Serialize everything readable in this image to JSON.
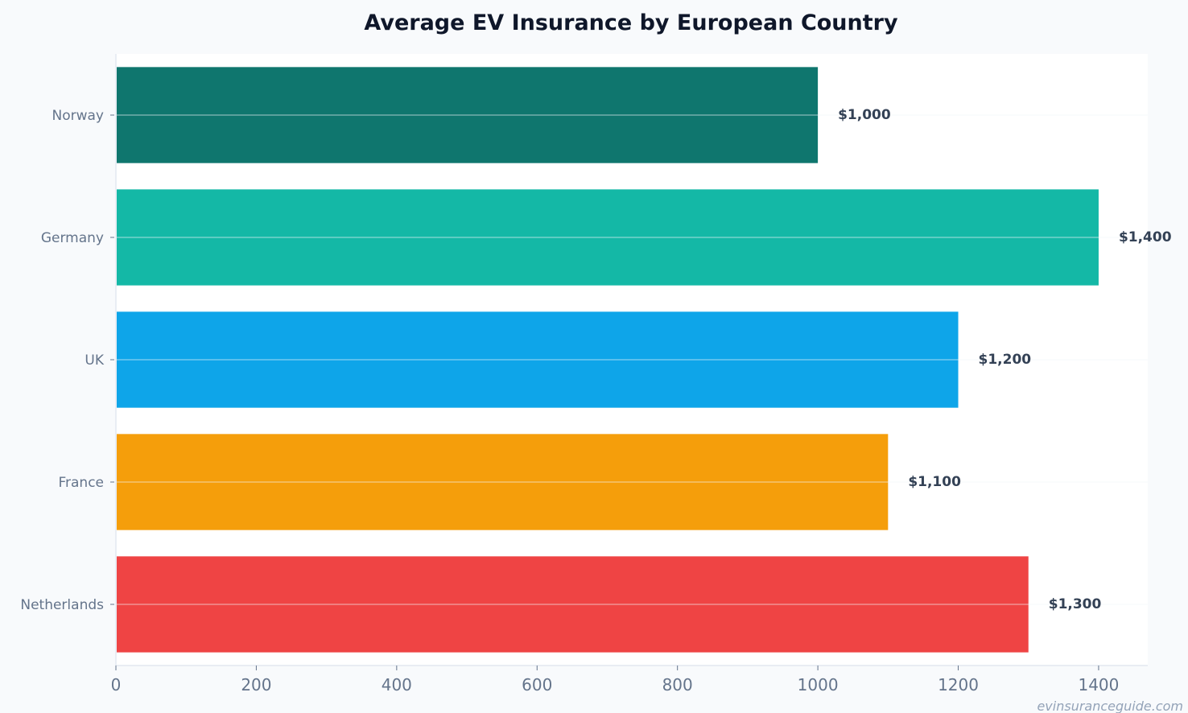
{
  "chart_data": {
    "type": "bar",
    "orientation": "horizontal",
    "title": "Average EV Insurance by European Country",
    "xlabel": "",
    "ylabel": "",
    "categories": [
      "Norway",
      "Germany",
      "UK",
      "France",
      "Netherlands"
    ],
    "values": [
      1000,
      1400,
      1200,
      1100,
      1300
    ],
    "data_labels": [
      "$1,000",
      "$1,400",
      "$1,200",
      "$1,100",
      "$1,300"
    ],
    "colors": [
      "#0f766e",
      "#14b8a6",
      "#0ea5e9",
      "#f59e0b",
      "#ef4444"
    ],
    "xlim": [
      0,
      1470
    ],
    "xticks": [
      0,
      200,
      400,
      600,
      800,
      1000,
      1200,
      1400
    ],
    "grid": "horizontal",
    "legend": "none"
  },
  "watermark": "evinsuranceguide.com"
}
